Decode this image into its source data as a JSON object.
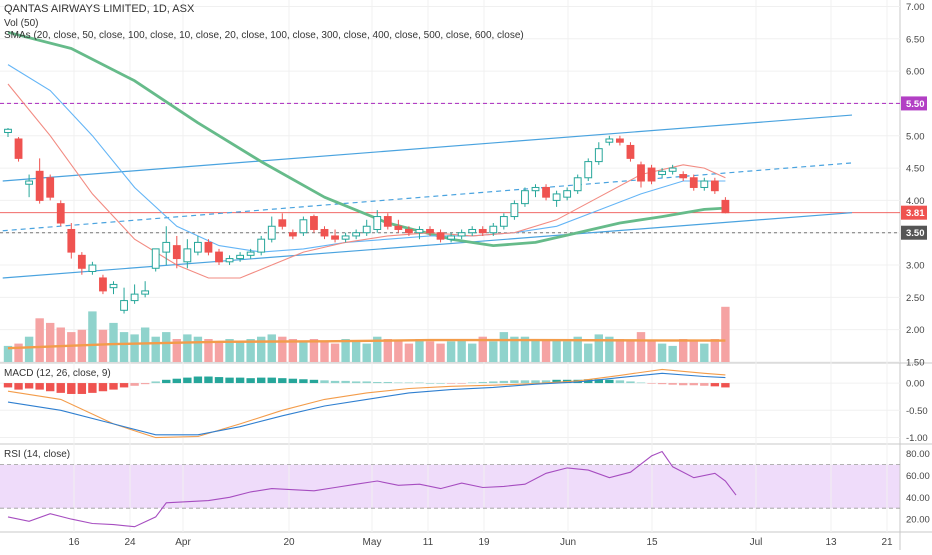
{
  "header": {
    "title": "QANTAS AIRWAYS LIMITED, 1D, ASX",
    "vol_label": "Vol (50)",
    "sma_label": "SMAs (20, close, 50, close, 100, close, 10, close, 20, close, 100, close, 300, close, 400, close, 500, close, 600, close)",
    "macd_label": "MACD (12, 26, close, 9)",
    "rsi_label": "RSI (14, close)"
  },
  "colors": {
    "up": "#26a69a",
    "down": "#ef5350",
    "vol_up": "#8fd3cc",
    "vol_down": "#f5a3a3",
    "sma_fast": "#f28b82",
    "sma_mid": "#5c6bc0",
    "sma_thin_blue": "#64b5f6",
    "sma_slow": "#66bb8a",
    "vol_ma": "#f39c4a",
    "trend": "#4aa3df",
    "macd": "#2f7fd0",
    "signal": "#f39c4a",
    "rsi": "#a64dc0",
    "rsi_band": "#efdcfa",
    "resistance": "#b23fc4"
  },
  "chart_data": [
    {
      "type": "candlestick",
      "panel": "price",
      "ylim": [
        1.5,
        7.1
      ],
      "y_ticks": [
        "1.50",
        "2.00",
        "2.50",
        "3.00",
        "3.50",
        "4.00",
        "4.50",
        "5.00",
        "5.50",
        "6.00",
        "6.50",
        "7.00"
      ],
      "x_ticks": [
        "16",
        "24",
        "Apr",
        "20",
        "May",
        "11",
        "19",
        "Jun",
        "15",
        "Jul",
        "13",
        "21"
      ],
      "price_labels": [
        {
          "value": 5.5,
          "label": "5.50"
        },
        {
          "value": 3.81,
          "label": "3.81"
        },
        {
          "value": 3.5,
          "label": "3.50"
        }
      ],
      "candles": [
        {
          "o": 5.05,
          "h": 5.12,
          "l": 4.98,
          "c": 5.1
        },
        {
          "o": 4.95,
          "h": 4.98,
          "l": 4.6,
          "c": 4.65
        },
        {
          "o": 4.25,
          "h": 4.4,
          "l": 4.05,
          "c": 4.3
        },
        {
          "o": 4.45,
          "h": 4.65,
          "l": 3.95,
          "c": 4.0
        },
        {
          "o": 4.35,
          "h": 4.4,
          "l": 4.0,
          "c": 4.05
        },
        {
          "o": 3.95,
          "h": 4.0,
          "l": 3.6,
          "c": 3.65
        },
        {
          "o": 3.55,
          "h": 3.65,
          "l": 3.1,
          "c": 3.2
        },
        {
          "o": 3.15,
          "h": 3.2,
          "l": 2.85,
          "c": 2.95
        },
        {
          "o": 2.9,
          "h": 3.05,
          "l": 2.85,
          "c": 3.0
        },
        {
          "o": 2.8,
          "h": 2.85,
          "l": 2.55,
          "c": 2.6
        },
        {
          "o": 2.65,
          "h": 2.75,
          "l": 2.55,
          "c": 2.7
        },
        {
          "o": 2.3,
          "h": 2.65,
          "l": 2.25,
          "c": 2.45
        },
        {
          "o": 2.45,
          "h": 2.7,
          "l": 2.4,
          "c": 2.55
        },
        {
          "o": 2.55,
          "h": 2.75,
          "l": 2.5,
          "c": 2.6
        },
        {
          "o": 2.95,
          "h": 3.2,
          "l": 2.9,
          "c": 3.25
        },
        {
          "o": 3.2,
          "h": 3.6,
          "l": 3.0,
          "c": 3.35
        },
        {
          "o": 3.3,
          "h": 3.45,
          "l": 2.95,
          "c": 3.1
        },
        {
          "o": 3.05,
          "h": 3.4,
          "l": 2.95,
          "c": 3.25
        },
        {
          "o": 3.2,
          "h": 3.45,
          "l": 3.15,
          "c": 3.35
        },
        {
          "o": 3.35,
          "h": 3.4,
          "l": 3.15,
          "c": 3.2
        },
        {
          "o": 3.2,
          "h": 3.25,
          "l": 3.0,
          "c": 3.05
        },
        {
          "o": 3.05,
          "h": 3.15,
          "l": 3.0,
          "c": 3.1
        },
        {
          "o": 3.1,
          "h": 3.2,
          "l": 3.05,
          "c": 3.15
        },
        {
          "o": 3.15,
          "h": 3.25,
          "l": 3.1,
          "c": 3.2
        },
        {
          "o": 3.2,
          "h": 3.45,
          "l": 3.15,
          "c": 3.4
        },
        {
          "o": 3.4,
          "h": 3.75,
          "l": 3.35,
          "c": 3.6
        },
        {
          "o": 3.7,
          "h": 3.8,
          "l": 3.55,
          "c": 3.6
        },
        {
          "o": 3.5,
          "h": 3.55,
          "l": 3.4,
          "c": 3.45
        },
        {
          "o": 3.5,
          "h": 3.75,
          "l": 3.45,
          "c": 3.7
        },
        {
          "o": 3.75,
          "h": 3.78,
          "l": 3.5,
          "c": 3.55
        },
        {
          "o": 3.55,
          "h": 3.6,
          "l": 3.4,
          "c": 3.45
        },
        {
          "o": 3.45,
          "h": 3.55,
          "l": 3.35,
          "c": 3.4
        },
        {
          "o": 3.4,
          "h": 3.5,
          "l": 3.35,
          "c": 3.45
        },
        {
          "o": 3.45,
          "h": 3.55,
          "l": 3.4,
          "c": 3.5
        },
        {
          "o": 3.5,
          "h": 3.7,
          "l": 3.45,
          "c": 3.6
        },
        {
          "o": 3.55,
          "h": 3.85,
          "l": 3.5,
          "c": 3.75
        },
        {
          "o": 3.75,
          "h": 3.8,
          "l": 3.55,
          "c": 3.6
        },
        {
          "o": 3.6,
          "h": 3.7,
          "l": 3.5,
          "c": 3.55
        },
        {
          "o": 3.55,
          "h": 3.6,
          "l": 3.45,
          "c": 3.5
        },
        {
          "o": 3.5,
          "h": 3.6,
          "l": 3.4,
          "c": 3.55
        },
        {
          "o": 3.55,
          "h": 3.6,
          "l": 3.45,
          "c": 3.5
        },
        {
          "o": 3.5,
          "h": 3.55,
          "l": 3.35,
          "c": 3.4
        },
        {
          "o": 3.4,
          "h": 3.5,
          "l": 3.35,
          "c": 3.45
        },
        {
          "o": 3.45,
          "h": 3.55,
          "l": 3.4,
          "c": 3.5
        },
        {
          "o": 3.5,
          "h": 3.6,
          "l": 3.45,
          "c": 3.55
        },
        {
          "o": 3.55,
          "h": 3.6,
          "l": 3.45,
          "c": 3.5
        },
        {
          "o": 3.5,
          "h": 3.65,
          "l": 3.45,
          "c": 3.6
        },
        {
          "o": 3.6,
          "h": 3.8,
          "l": 3.55,
          "c": 3.75
        },
        {
          "o": 3.75,
          "h": 4.0,
          "l": 3.7,
          "c": 3.95
        },
        {
          "o": 3.95,
          "h": 4.2,
          "l": 3.9,
          "c": 4.15
        },
        {
          "o": 4.15,
          "h": 4.25,
          "l": 4.05,
          "c": 4.2
        },
        {
          "o": 4.2,
          "h": 4.25,
          "l": 4.0,
          "c": 4.05
        },
        {
          "o": 4.0,
          "h": 4.15,
          "l": 3.9,
          "c": 4.1
        },
        {
          "o": 4.05,
          "h": 4.2,
          "l": 4.0,
          "c": 4.15
        },
        {
          "o": 4.15,
          "h": 4.4,
          "l": 4.1,
          "c": 4.35
        },
        {
          "o": 4.35,
          "h": 4.65,
          "l": 4.3,
          "c": 4.6
        },
        {
          "o": 4.6,
          "h": 4.9,
          "l": 4.55,
          "c": 4.8
        },
        {
          "o": 4.9,
          "h": 5.0,
          "l": 4.85,
          "c": 4.95
        },
        {
          "o": 4.95,
          "h": 5.0,
          "l": 4.85,
          "c": 4.9
        },
        {
          "o": 4.85,
          "h": 4.9,
          "l": 4.6,
          "c": 4.65
        },
        {
          "o": 4.55,
          "h": 4.6,
          "l": 4.2,
          "c": 4.3
        },
        {
          "o": 4.5,
          "h": 4.55,
          "l": 4.25,
          "c": 4.3
        },
        {
          "o": 4.4,
          "h": 4.5,
          "l": 4.35,
          "c": 4.45
        },
        {
          "o": 4.45,
          "h": 4.55,
          "l": 4.4,
          "c": 4.5
        },
        {
          "o": 4.4,
          "h": 4.45,
          "l": 4.3,
          "c": 4.35
        },
        {
          "o": 4.35,
          "h": 4.4,
          "l": 4.15,
          "c": 4.2
        },
        {
          "o": 4.2,
          "h": 4.35,
          "l": 4.15,
          "c": 4.3
        },
        {
          "o": 4.3,
          "h": 4.35,
          "l": 4.1,
          "c": 4.15
        },
        {
          "o": 4.0,
          "h": 4.05,
          "l": 3.8,
          "c": 3.81
        }
      ],
      "sma_slow_points": [
        [
          0,
          6.6
        ],
        [
          6,
          6.35
        ],
        [
          12,
          5.85
        ],
        [
          18,
          5.2
        ],
        [
          24,
          4.6
        ],
        [
          30,
          4.05
        ],
        [
          36,
          3.65
        ],
        [
          42,
          3.4
        ],
        [
          46,
          3.3
        ],
        [
          50,
          3.35
        ],
        [
          54,
          3.5
        ],
        [
          58,
          3.65
        ],
        [
          62,
          3.75
        ],
        [
          66,
          3.86
        ],
        [
          68,
          3.88
        ]
      ],
      "sma_fast_points": [
        [
          0,
          5.8
        ],
        [
          4,
          5.0
        ],
        [
          8,
          4.1
        ],
        [
          12,
          3.4
        ],
        [
          16,
          3.0
        ],
        [
          19,
          2.8
        ],
        [
          22,
          2.8
        ],
        [
          25,
          3.0
        ],
        [
          28,
          3.2
        ],
        [
          32,
          3.35
        ],
        [
          36,
          3.45
        ],
        [
          40,
          3.5
        ],
        [
          44,
          3.45
        ],
        [
          48,
          3.5
        ],
        [
          52,
          3.7
        ],
        [
          56,
          4.05
        ],
        [
          60,
          4.4
        ],
        [
          64,
          4.55
        ],
        [
          66,
          4.5
        ],
        [
          68,
          4.35
        ]
      ],
      "sma_thin_points": [
        [
          0,
          6.1
        ],
        [
          4,
          5.7
        ],
        [
          8,
          5.0
        ],
        [
          12,
          4.2
        ],
        [
          16,
          3.6
        ],
        [
          20,
          3.3
        ],
        [
          24,
          3.2
        ],
        [
          28,
          3.25
        ],
        [
          32,
          3.35
        ],
        [
          36,
          3.4
        ],
        [
          40,
          3.45
        ],
        [
          44,
          3.45
        ],
        [
          48,
          3.5
        ],
        [
          52,
          3.6
        ],
        [
          56,
          3.85
        ],
        [
          60,
          4.1
        ],
        [
          64,
          4.3
        ],
        [
          66,
          4.3
        ],
        [
          68,
          4.3
        ]
      ],
      "trend_lines": [
        {
          "from": [
            -0.5,
            4.3
          ],
          "to": [
            80,
            5.32
          ]
        },
        {
          "from": [
            -0.5,
            2.8
          ],
          "to": [
            80,
            3.81
          ]
        },
        {
          "from": [
            -0.5,
            3.53
          ],
          "to": [
            80,
            4.58
          ],
          "dashed": true
        }
      ],
      "hlines": [
        {
          "value": 5.5,
          "role": "resistance"
        },
        {
          "value": 3.81,
          "role": "last"
        },
        {
          "value": 3.5,
          "role": "support"
        }
      ]
    },
    {
      "type": "bar",
      "panel": "volume",
      "values": [
        2.2,
        2.3,
        2.6,
        3.4,
        3.2,
        3.0,
        2.8,
        2.9,
        3.7,
        2.9,
        3.2,
        2.8,
        2.7,
        3.0,
        2.6,
        2.8,
        2.5,
        2.7,
        2.6,
        2.5,
        2.4,
        2.5,
        2.4,
        2.5,
        2.6,
        2.7,
        2.6,
        2.5,
        2.4,
        2.5,
        2.4,
        2.3,
        2.5,
        2.4,
        2.3,
        2.6,
        2.5,
        2.4,
        2.3,
        2.5,
        2.4,
        2.3,
        2.4,
        2.5,
        2.3,
        2.6,
        2.4,
        2.8,
        2.6,
        2.6,
        2.5,
        2.5,
        2.5,
        2.4,
        2.6,
        2.3,
        2.7,
        2.6,
        2.5,
        2.4,
        2.8,
        2.4,
        2.3,
        2.2,
        2.5,
        2.4,
        2.3,
        2.5,
        3.9
      ],
      "ma_points": [
        [
          0,
          2.1
        ],
        [
          10,
          2.28
        ],
        [
          20,
          2.38
        ],
        [
          30,
          2.4
        ],
        [
          40,
          2.45
        ],
        [
          50,
          2.45
        ],
        [
          60,
          2.44
        ],
        [
          68,
          2.43
        ]
      ]
    },
    {
      "type": "line",
      "panel": "macd",
      "ylim": [
        -1.1,
        0.35
      ],
      "y_ticks": [
        "0.00",
        "-0.50",
        "-1.00"
      ],
      "macd_points": [
        [
          0,
          -0.35
        ],
        [
          5,
          -0.5
        ],
        [
          10,
          -0.75
        ],
        [
          14,
          -0.95
        ],
        [
          18,
          -0.95
        ],
        [
          22,
          -0.8
        ],
        [
          26,
          -0.6
        ],
        [
          30,
          -0.42
        ],
        [
          34,
          -0.3
        ],
        [
          38,
          -0.18
        ],
        [
          42,
          -0.12
        ],
        [
          46,
          -0.08
        ],
        [
          50,
          -0.02
        ],
        [
          54,
          0.02
        ],
        [
          58,
          0.1
        ],
        [
          62,
          0.18
        ],
        [
          66,
          0.12
        ],
        [
          68,
          0.1
        ]
      ],
      "signal_points": [
        [
          0,
          -0.15
        ],
        [
          5,
          -0.3
        ],
        [
          10,
          -0.75
        ],
        [
          14,
          -1.0
        ],
        [
          18,
          -0.98
        ],
        [
          22,
          -0.75
        ],
        [
          26,
          -0.5
        ],
        [
          30,
          -0.3
        ],
        [
          34,
          -0.18
        ],
        [
          38,
          -0.1
        ],
        [
          42,
          -0.06
        ],
        [
          46,
          -0.04
        ],
        [
          50,
          -0.01
        ],
        [
          54,
          0.04
        ],
        [
          58,
          0.14
        ],
        [
          62,
          0.25
        ],
        [
          66,
          0.18
        ],
        [
          68,
          0.15
        ]
      ],
      "hist": [
        -0.08,
        -0.12,
        -0.1,
        -0.12,
        -0.15,
        -0.18,
        -0.2,
        -0.2,
        -0.18,
        -0.15,
        -0.12,
        -0.08,
        -0.05,
        -0.02,
        0.03,
        0.06,
        0.08,
        0.1,
        0.12,
        0.12,
        0.11,
        0.1,
        0.1,
        0.09,
        0.1,
        0.1,
        0.09,
        0.08,
        0.07,
        0.06,
        0.05,
        0.04,
        0.04,
        0.03,
        0.03,
        0.02,
        0.02,
        0.01,
        0.01,
        0.01,
        0.0,
        0.0,
        -0.01,
        -0.01,
        0.01,
        0.02,
        0.03,
        0.04,
        0.05,
        0.05,
        0.05,
        0.05,
        0.06,
        0.06,
        0.06,
        0.07,
        0.07,
        0.06,
        0.05,
        0.03,
        0.01,
        -0.01,
        -0.02,
        -0.03,
        -0.04,
        -0.04,
        -0.05,
        -0.06,
        -0.08
      ]
    },
    {
      "type": "line",
      "panel": "rsi",
      "ylim": [
        10,
        88
      ],
      "y_ticks": [
        "80.00",
        "60.00",
        "40.00",
        "20.00"
      ],
      "band": [
        30,
        70
      ],
      "rsi_points": [
        [
          0,
          22
        ],
        [
          2,
          18
        ],
        [
          4,
          25
        ],
        [
          6,
          20
        ],
        [
          8,
          16
        ],
        [
          10,
          15
        ],
        [
          12,
          13
        ],
        [
          14,
          22
        ],
        [
          15,
          35
        ],
        [
          17,
          36
        ],
        [
          19,
          37
        ],
        [
          21,
          40
        ],
        [
          23,
          45
        ],
        [
          25,
          48
        ],
        [
          27,
          47
        ],
        [
          29,
          46
        ],
        [
          31,
          49
        ],
        [
          33,
          52
        ],
        [
          35,
          55
        ],
        [
          37,
          51
        ],
        [
          39,
          52
        ],
        [
          41,
          48
        ],
        [
          43,
          53
        ],
        [
          45,
          49
        ],
        [
          47,
          50
        ],
        [
          49,
          52
        ],
        [
          51,
          62
        ],
        [
          53,
          67
        ],
        [
          55,
          65
        ],
        [
          57,
          58
        ],
        [
          59,
          63
        ],
        [
          61,
          78
        ],
        [
          62,
          82
        ],
        [
          63,
          68
        ],
        [
          65,
          58
        ],
        [
          67,
          62
        ],
        [
          68,
          55
        ],
        [
          69,
          42
        ]
      ]
    }
  ]
}
